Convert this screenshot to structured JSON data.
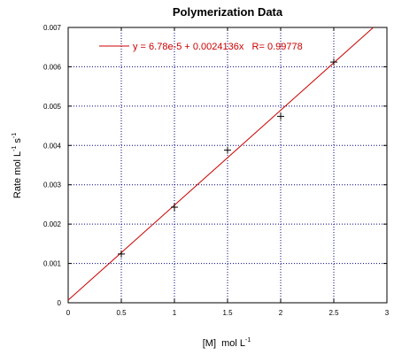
{
  "chart_data": {
    "type": "scatter",
    "title": "Polymerization Data",
    "xlabel": {
      "base": "[M]  mol L",
      "sup": "-1"
    },
    "ylabel": {
      "base1": "Rate mol L",
      "sup1": "-1",
      "base2": " s",
      "sup2": "-1"
    },
    "xlim": [
      0,
      3
    ],
    "ylim": [
      0,
      0.007
    ],
    "xticks": [
      0,
      0.5,
      1,
      1.5,
      2,
      2.5,
      3
    ],
    "xtick_labels": [
      "0",
      "0.5",
      "1",
      "1.5",
      "2",
      "2.5",
      "3"
    ],
    "yticks": [
      0,
      0.001,
      0.002,
      0.003,
      0.004,
      0.005,
      0.006,
      0.007
    ],
    "ytick_labels": [
      "0",
      "0.001",
      "0.002",
      "0.003",
      "0.004",
      "0.005",
      "0.006",
      "0.007"
    ],
    "grid": true,
    "legend_position": "top-left",
    "series": [
      {
        "x": [
          0.5,
          1.0,
          1.5,
          2.0,
          2.5
        ],
        "y": [
          0.00124,
          0.00243,
          0.00388,
          0.00474,
          0.00612
        ]
      }
    ],
    "fit": {
      "intercept": 6.78e-05,
      "slope": 0.0024136,
      "equation": "y = 6.78e-5 + 0.0024136x   R= 0.99778"
    },
    "colors": {
      "fit_line": "#cc0000",
      "legend_text": "#cc0000",
      "grid": "#000080",
      "marker": "#000000",
      "axes": "#000000"
    }
  }
}
